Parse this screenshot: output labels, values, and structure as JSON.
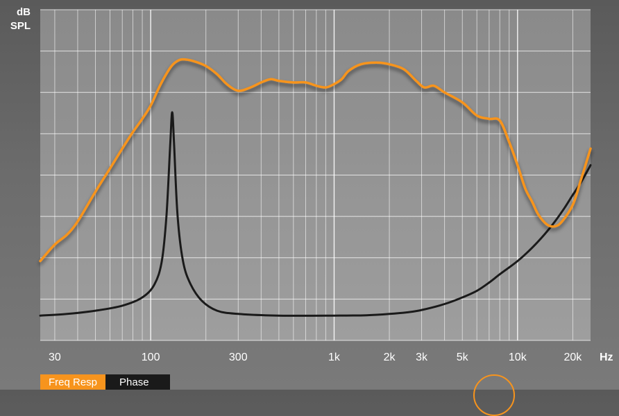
{
  "chart_data": {
    "type": "line",
    "ylabel_lines": [
      "dB",
      "SPL"
    ],
    "xlabel": "Hz",
    "x_scale": "log",
    "xlim": [
      25,
      25000
    ],
    "ylim": [
      0,
      100
    ],
    "grid": true,
    "x_ticks": [
      {
        "value": 30,
        "label": "30"
      },
      {
        "value": 100,
        "label": "100"
      },
      {
        "value": 300,
        "label": "300"
      },
      {
        "value": 1000,
        "label": "1k"
      },
      {
        "value": 2000,
        "label": "2k"
      },
      {
        "value": 3000,
        "label": "3k"
      },
      {
        "value": 5000,
        "label": "5k"
      },
      {
        "value": 10000,
        "label": "10k"
      },
      {
        "value": 20000,
        "label": "20k"
      }
    ],
    "series": [
      {
        "name": "Freq Resp",
        "color": "#f7941d",
        "points": [
          [
            25,
            24
          ],
          [
            30,
            29
          ],
          [
            35,
            32
          ],
          [
            40,
            36
          ],
          [
            50,
            45
          ],
          [
            60,
            52
          ],
          [
            70,
            58
          ],
          [
            80,
            63
          ],
          [
            90,
            67
          ],
          [
            100,
            71
          ],
          [
            110,
            76
          ],
          [
            120,
            80
          ],
          [
            130,
            83
          ],
          [
            140,
            84.5
          ],
          [
            150,
            85
          ],
          [
            170,
            84.5
          ],
          [
            200,
            83
          ],
          [
            230,
            80.5
          ],
          [
            260,
            77.5
          ],
          [
            300,
            75.5
          ],
          [
            350,
            76.5
          ],
          [
            400,
            78
          ],
          [
            450,
            79
          ],
          [
            500,
            78.5
          ],
          [
            600,
            78
          ],
          [
            700,
            78
          ],
          [
            800,
            77
          ],
          [
            900,
            76.5
          ],
          [
            1000,
            77.5
          ],
          [
            1100,
            79
          ],
          [
            1200,
            81.5
          ],
          [
            1400,
            83.5
          ],
          [
            1700,
            84
          ],
          [
            2000,
            83.5
          ],
          [
            2400,
            82
          ],
          [
            2800,
            78.5
          ],
          [
            3100,
            76.5
          ],
          [
            3500,
            77
          ],
          [
            4000,
            75
          ],
          [
            5000,
            72
          ],
          [
            6000,
            68
          ],
          [
            7000,
            67
          ],
          [
            8000,
            66.5
          ],
          [
            9000,
            60
          ],
          [
            10000,
            53
          ],
          [
            11000,
            46
          ],
          [
            12000,
            42
          ],
          [
            13000,
            38
          ],
          [
            14500,
            35
          ],
          [
            16000,
            34.5
          ],
          [
            17500,
            36
          ],
          [
            20000,
            41
          ],
          [
            22000,
            48
          ],
          [
            25000,
            58
          ]
        ]
      },
      {
        "name": "Phase",
        "color": "#1a1a1a",
        "points": [
          [
            25,
            7.5
          ],
          [
            35,
            8
          ],
          [
            50,
            9
          ],
          [
            70,
            10.5
          ],
          [
            90,
            13
          ],
          [
            105,
            17
          ],
          [
            115,
            24
          ],
          [
            122,
            38
          ],
          [
            128,
            60
          ],
          [
            131,
            69
          ],
          [
            134,
            60
          ],
          [
            140,
            38
          ],
          [
            150,
            24
          ],
          [
            165,
            17
          ],
          [
            190,
            12
          ],
          [
            230,
            9
          ],
          [
            300,
            8
          ],
          [
            500,
            7.5
          ],
          [
            1000,
            7.5
          ],
          [
            1500,
            7.6
          ],
          [
            2000,
            8
          ],
          [
            2500,
            8.5
          ],
          [
            3000,
            9.2
          ],
          [
            4000,
            11
          ],
          [
            5000,
            13
          ],
          [
            6000,
            15
          ],
          [
            7000,
            17.5
          ],
          [
            8000,
            20
          ],
          [
            10000,
            24
          ],
          [
            12000,
            28
          ],
          [
            14000,
            32
          ],
          [
            16000,
            36
          ],
          [
            18000,
            40
          ],
          [
            20000,
            44
          ],
          [
            22000,
            47.5
          ],
          [
            25000,
            53
          ]
        ]
      }
    ]
  },
  "legend": {
    "freq_label": "Freq Resp",
    "phase_label": "Phase"
  },
  "colors": {
    "accent": "#f7941d",
    "phase": "#1a1a1a",
    "grid": "#ffffff"
  }
}
